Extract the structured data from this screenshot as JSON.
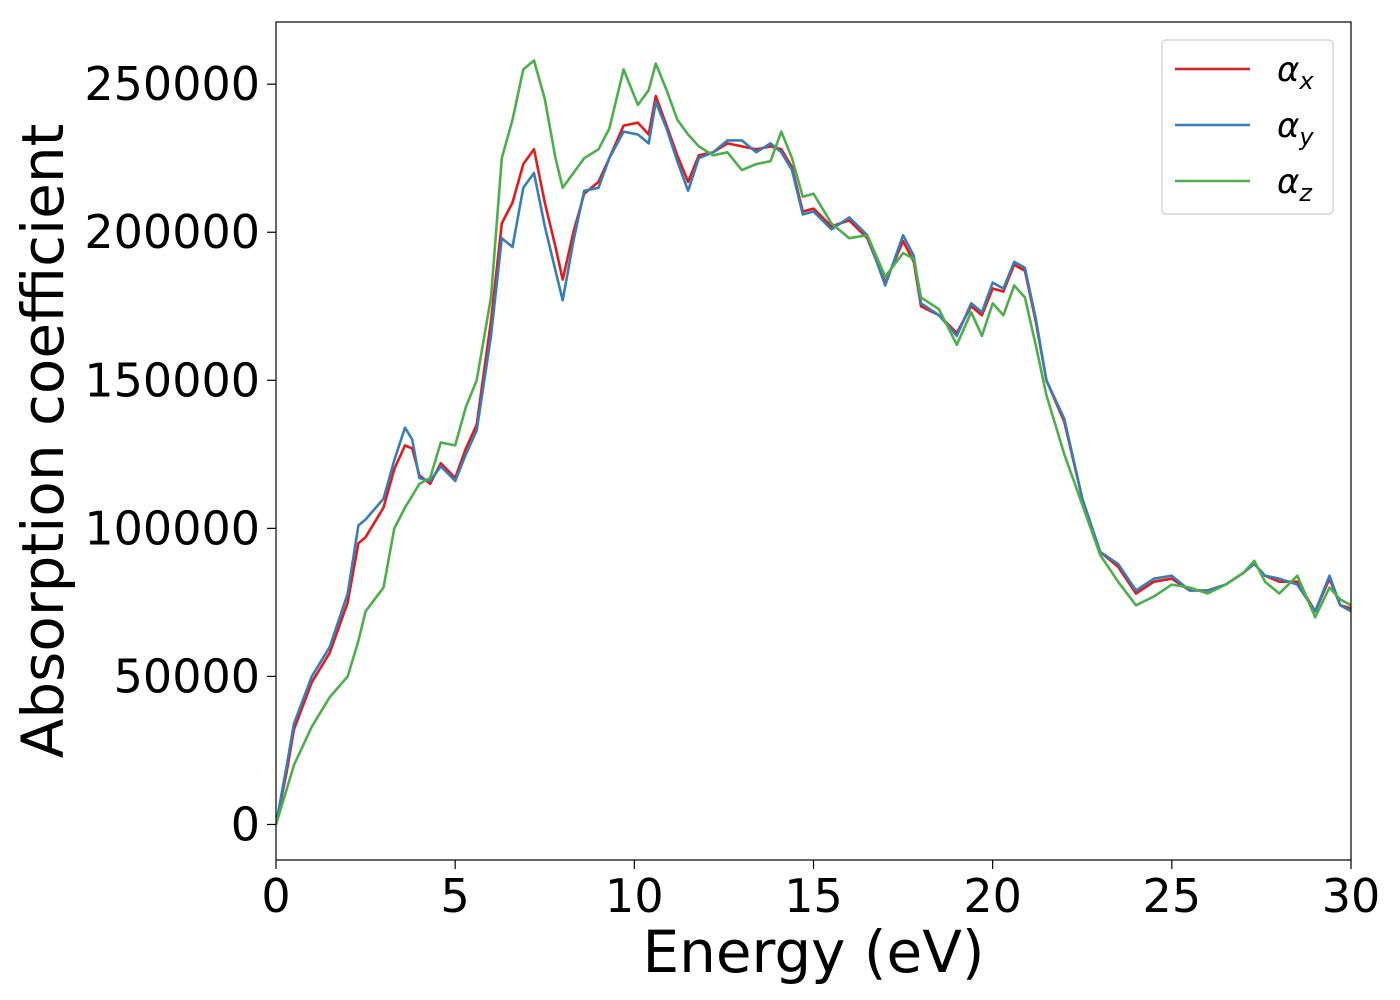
{
  "chart_data": {
    "type": "line",
    "title": "",
    "xlabel": "Energy (eV)",
    "ylabel": "Absorption coefficient",
    "xlim": [
      0,
      30
    ],
    "ylim": [
      -12000,
      271000
    ],
    "xticks": [
      0,
      5,
      10,
      15,
      20,
      25,
      30
    ],
    "xtick_labels": [
      "0",
      "5",
      "10",
      "15",
      "20",
      "25",
      "30"
    ],
    "yticks": [
      0,
      50000,
      100000,
      150000,
      200000,
      250000
    ],
    "ytick_labels": [
      "0",
      "50000",
      "100000",
      "150000",
      "200000",
      "250000"
    ],
    "grid": false,
    "legend_position": "top-right",
    "series": [
      {
        "name": "αx",
        "base": "α",
        "sub": "x",
        "color": "#e41a1c",
        "points": [
          [
            0,
            0
          ],
          [
            0.3,
            18000
          ],
          [
            0.5,
            32000
          ],
          [
            1,
            48000
          ],
          [
            1.5,
            58000
          ],
          [
            2,
            75000
          ],
          [
            2.3,
            95000
          ],
          [
            2.5,
            97000
          ],
          [
            3,
            107000
          ],
          [
            3.3,
            120000
          ],
          [
            3.6,
            128000
          ],
          [
            3.8,
            127000
          ],
          [
            4,
            118000
          ],
          [
            4.3,
            115000
          ],
          [
            4.6,
            122000
          ],
          [
            5,
            117000
          ],
          [
            5.3,
            127000
          ],
          [
            5.6,
            135000
          ],
          [
            6,
            170000
          ],
          [
            6.3,
            203000
          ],
          [
            6.6,
            210000
          ],
          [
            6.9,
            223000
          ],
          [
            7.2,
            228000
          ],
          [
            7.5,
            210000
          ],
          [
            7.8,
            195000
          ],
          [
            8,
            184000
          ],
          [
            8.3,
            200000
          ],
          [
            8.6,
            213000
          ],
          [
            9,
            217000
          ],
          [
            9.3,
            225000
          ],
          [
            9.7,
            236000
          ],
          [
            10.1,
            237000
          ],
          [
            10.4,
            233000
          ],
          [
            10.6,
            246000
          ],
          [
            10.9,
            236000
          ],
          [
            11.2,
            226000
          ],
          [
            11.5,
            217000
          ],
          [
            11.8,
            226000
          ],
          [
            12.2,
            227000
          ],
          [
            12.6,
            230000
          ],
          [
            13,
            229000
          ],
          [
            13.4,
            228000
          ],
          [
            13.8,
            229000
          ],
          [
            14.1,
            228000
          ],
          [
            14.4,
            222000
          ],
          [
            14.7,
            207000
          ],
          [
            15,
            208000
          ],
          [
            15.5,
            202000
          ],
          [
            16,
            204000
          ],
          [
            16.5,
            198000
          ],
          [
            17,
            183000
          ],
          [
            17.5,
            197000
          ],
          [
            17.8,
            190000
          ],
          [
            18,
            175000
          ],
          [
            18.5,
            172000
          ],
          [
            19,
            166000
          ],
          [
            19.4,
            175000
          ],
          [
            19.7,
            172000
          ],
          [
            20,
            181000
          ],
          [
            20.3,
            180000
          ],
          [
            20.6,
            189000
          ],
          [
            20.9,
            187000
          ],
          [
            21.2,
            170000
          ],
          [
            21.5,
            150000
          ],
          [
            22,
            136000
          ],
          [
            22.5,
            110000
          ],
          [
            23,
            92000
          ],
          [
            23.5,
            87000
          ],
          [
            24,
            78000
          ],
          [
            24.5,
            82000
          ],
          [
            25,
            83000
          ],
          [
            25.5,
            79000
          ],
          [
            26,
            79000
          ],
          [
            26.5,
            81000
          ],
          [
            27,
            85000
          ],
          [
            27.3,
            88000
          ],
          [
            27.6,
            84000
          ],
          [
            28,
            82000
          ],
          [
            28.5,
            82000
          ],
          [
            29,
            72000
          ],
          [
            29.4,
            83000
          ],
          [
            29.7,
            74000
          ],
          [
            30,
            73000
          ]
        ]
      },
      {
        "name": "αy",
        "base": "α",
        "sub": "y",
        "color": "#377eb8",
        "points": [
          [
            0,
            0
          ],
          [
            0.3,
            20000
          ],
          [
            0.5,
            34000
          ],
          [
            1,
            50000
          ],
          [
            1.5,
            60000
          ],
          [
            2,
            78000
          ],
          [
            2.3,
            101000
          ],
          [
            2.5,
            103000
          ],
          [
            3,
            110000
          ],
          [
            3.3,
            123000
          ],
          [
            3.6,
            134000
          ],
          [
            3.8,
            130000
          ],
          [
            4,
            117000
          ],
          [
            4.3,
            116000
          ],
          [
            4.6,
            121000
          ],
          [
            5,
            116000
          ],
          [
            5.3,
            125000
          ],
          [
            5.6,
            133000
          ],
          [
            6,
            165000
          ],
          [
            6.3,
            198000
          ],
          [
            6.6,
            195000
          ],
          [
            6.9,
            215000
          ],
          [
            7.2,
            220000
          ],
          [
            7.5,
            202000
          ],
          [
            7.8,
            187000
          ],
          [
            8,
            177000
          ],
          [
            8.3,
            197000
          ],
          [
            8.6,
            214000
          ],
          [
            9,
            215000
          ],
          [
            9.3,
            225000
          ],
          [
            9.7,
            234000
          ],
          [
            10.1,
            233000
          ],
          [
            10.4,
            230000
          ],
          [
            10.6,
            244000
          ],
          [
            10.9,
            235000
          ],
          [
            11.2,
            224000
          ],
          [
            11.5,
            214000
          ],
          [
            11.8,
            225000
          ],
          [
            12.2,
            227000
          ],
          [
            12.6,
            231000
          ],
          [
            13,
            231000
          ],
          [
            13.4,
            227000
          ],
          [
            13.8,
            230000
          ],
          [
            14.1,
            227000
          ],
          [
            14.4,
            221000
          ],
          [
            14.7,
            206000
          ],
          [
            15,
            207000
          ],
          [
            15.5,
            201000
          ],
          [
            16,
            205000
          ],
          [
            16.5,
            199000
          ],
          [
            17,
            182000
          ],
          [
            17.5,
            199000
          ],
          [
            17.8,
            192000
          ],
          [
            18,
            176000
          ],
          [
            18.5,
            172000
          ],
          [
            19,
            165000
          ],
          [
            19.4,
            176000
          ],
          [
            19.7,
            173000
          ],
          [
            20,
            183000
          ],
          [
            20.3,
            181000
          ],
          [
            20.6,
            190000
          ],
          [
            20.9,
            188000
          ],
          [
            21.2,
            171000
          ],
          [
            21.5,
            150000
          ],
          [
            22,
            137000
          ],
          [
            22.5,
            110000
          ],
          [
            23,
            92000
          ],
          [
            23.5,
            88000
          ],
          [
            24,
            79000
          ],
          [
            24.5,
            83000
          ],
          [
            25,
            84000
          ],
          [
            25.5,
            79000
          ],
          [
            26,
            79000
          ],
          [
            26.5,
            81000
          ],
          [
            27,
            85000
          ],
          [
            27.3,
            88000
          ],
          [
            27.6,
            84000
          ],
          [
            28,
            83000
          ],
          [
            28.5,
            81000
          ],
          [
            29,
            72000
          ],
          [
            29.4,
            84000
          ],
          [
            29.7,
            74000
          ],
          [
            30,
            72000
          ]
        ]
      },
      {
        "name": "αz",
        "base": "α",
        "sub": "z",
        "color": "#4daf4a",
        "points": [
          [
            0,
            0
          ],
          [
            0.3,
            12000
          ],
          [
            0.5,
            20000
          ],
          [
            1,
            33000
          ],
          [
            1.5,
            43000
          ],
          [
            2,
            50000
          ],
          [
            2.3,
            62000
          ],
          [
            2.5,
            72000
          ],
          [
            3,
            80000
          ],
          [
            3.3,
            100000
          ],
          [
            3.6,
            107000
          ],
          [
            3.8,
            111000
          ],
          [
            4,
            115000
          ],
          [
            4.3,
            117000
          ],
          [
            4.6,
            129000
          ],
          [
            5,
            128000
          ],
          [
            5.3,
            141000
          ],
          [
            5.6,
            150000
          ],
          [
            6,
            178000
          ],
          [
            6.3,
            225000
          ],
          [
            6.6,
            238000
          ],
          [
            6.9,
            255000
          ],
          [
            7.2,
            258000
          ],
          [
            7.5,
            245000
          ],
          [
            7.8,
            225000
          ],
          [
            8,
            215000
          ],
          [
            8.3,
            220000
          ],
          [
            8.6,
            225000
          ],
          [
            9,
            228000
          ],
          [
            9.3,
            235000
          ],
          [
            9.7,
            255000
          ],
          [
            10.1,
            243000
          ],
          [
            10.4,
            248000
          ],
          [
            10.6,
            257000
          ],
          [
            10.9,
            248000
          ],
          [
            11.2,
            238000
          ],
          [
            11.5,
            233000
          ],
          [
            11.8,
            229000
          ],
          [
            12.2,
            226000
          ],
          [
            12.6,
            227000
          ],
          [
            13,
            221000
          ],
          [
            13.4,
            223000
          ],
          [
            13.8,
            224000
          ],
          [
            14.1,
            234000
          ],
          [
            14.4,
            225000
          ],
          [
            14.7,
            212000
          ],
          [
            15,
            213000
          ],
          [
            15.5,
            203000
          ],
          [
            16,
            198000
          ],
          [
            16.5,
            199000
          ],
          [
            17,
            185000
          ],
          [
            17.5,
            193000
          ],
          [
            17.8,
            191000
          ],
          [
            18,
            178000
          ],
          [
            18.5,
            174000
          ],
          [
            19,
            162000
          ],
          [
            19.4,
            173000
          ],
          [
            19.7,
            165000
          ],
          [
            20,
            176000
          ],
          [
            20.3,
            172000
          ],
          [
            20.6,
            182000
          ],
          [
            20.9,
            178000
          ],
          [
            21.2,
            162000
          ],
          [
            21.5,
            145000
          ],
          [
            22,
            125000
          ],
          [
            22.5,
            108000
          ],
          [
            23,
            91000
          ],
          [
            23.5,
            82000
          ],
          [
            24,
            74000
          ],
          [
            24.5,
            77000
          ],
          [
            25,
            81000
          ],
          [
            25.5,
            80000
          ],
          [
            26,
            78000
          ],
          [
            26.5,
            81000
          ],
          [
            27,
            85000
          ],
          [
            27.3,
            89000
          ],
          [
            27.6,
            82000
          ],
          [
            28,
            78000
          ],
          [
            28.5,
            84000
          ],
          [
            29,
            70000
          ],
          [
            29.4,
            80000
          ],
          [
            29.7,
            76000
          ],
          [
            30,
            74000
          ]
        ]
      }
    ]
  }
}
